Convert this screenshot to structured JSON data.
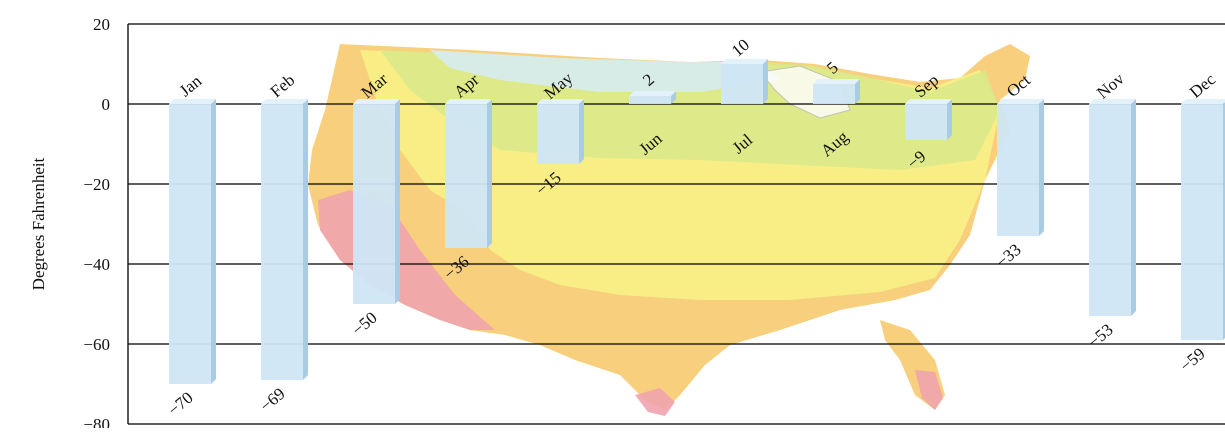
{
  "chart_data": {
    "type": "bar",
    "ylabel": "Degrees Fahrenheit",
    "ylim": [
      -80,
      20
    ],
    "yticks": [
      20,
      0,
      -20,
      -40,
      -60,
      -80
    ],
    "ytick_labels": [
      "20",
      "0",
      "−20",
      "−40",
      "−60",
      "−80"
    ],
    "grid": true,
    "categories": [
      "Jan",
      "Feb",
      "Mar",
      "Apr",
      "May",
      "Jun",
      "Jul",
      "Aug",
      "Sep",
      "Oct",
      "Nov",
      "Dec"
    ],
    "values": [
      -70,
      -69,
      -50,
      -36,
      -15,
      2,
      10,
      5,
      -9,
      -33,
      -53,
      -59
    ],
    "value_labels": [
      "−70",
      "−69",
      "−50",
      "−36",
      "−15",
      "2",
      "10",
      "5",
      "−9",
      "−33",
      "−53",
      "−59"
    ],
    "background": "map of the contiguous United States with colored temperature zones",
    "colors": {
      "bar_front": "#cfe6f5",
      "bar_side": "#a9cbe4",
      "bar_top": "#e3f1fa",
      "map_red": "#f0a3ad",
      "map_orange": "#f7c766",
      "map_yellow": "#f8ef86",
      "map_green": "#d9e98a",
      "map_blue": "#d7ecf2"
    }
  }
}
